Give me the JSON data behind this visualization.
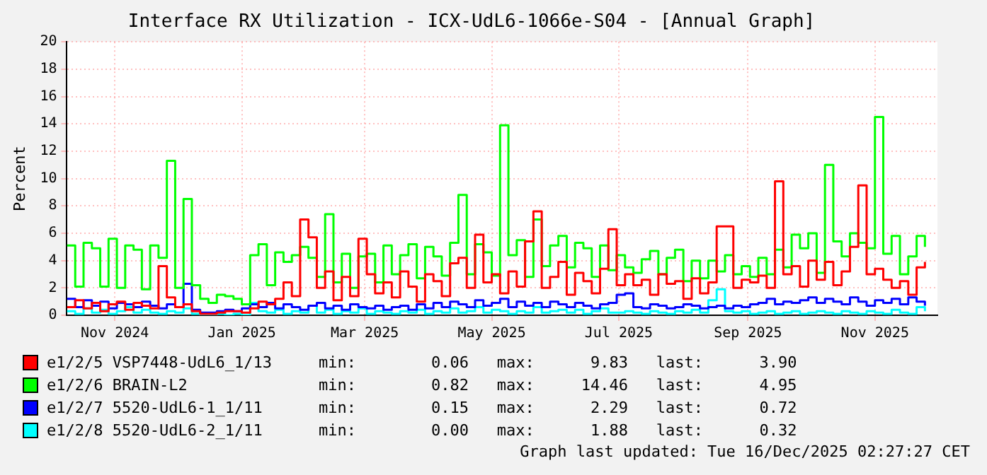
{
  "chart_data": {
    "type": "step",
    "title": "Interface RX Utilization - ICX-UdL6-1066e-S04 - [Annual Graph]",
    "ylabel": "Percent",
    "x": [
      "2024-10-23",
      "2024-10-27",
      "2024-10-31",
      "2024-11-04",
      "2024-11-08",
      "2024-11-12",
      "2024-11-16",
      "2024-11-20",
      "2024-11-24",
      "2024-11-28",
      "2024-12-02",
      "2024-12-06",
      "2024-12-10",
      "2024-12-14",
      "2024-12-18",
      "2024-12-22",
      "2024-12-26",
      "2024-12-30",
      "2025-01-03",
      "2025-01-07",
      "2025-01-11",
      "2025-01-15",
      "2025-01-19",
      "2025-01-23",
      "2025-01-27",
      "2025-01-31",
      "2025-02-04",
      "2025-02-08",
      "2025-02-12",
      "2025-02-16",
      "2025-02-20",
      "2025-02-24",
      "2025-02-28",
      "2025-03-04",
      "2025-03-08",
      "2025-03-12",
      "2025-03-16",
      "2025-03-20",
      "2025-03-24",
      "2025-03-28",
      "2025-04-01",
      "2025-04-05",
      "2025-04-09",
      "2025-04-13",
      "2025-04-17",
      "2025-04-21",
      "2025-04-25",
      "2025-04-29",
      "2025-05-03",
      "2025-05-07",
      "2025-05-11",
      "2025-05-15",
      "2025-05-19",
      "2025-05-23",
      "2025-05-27",
      "2025-05-31",
      "2025-06-04",
      "2025-06-08",
      "2025-06-12",
      "2025-06-16",
      "2025-06-20",
      "2025-06-24",
      "2025-06-28",
      "2025-07-02",
      "2025-07-06",
      "2025-07-10",
      "2025-07-14",
      "2025-07-18",
      "2025-07-22",
      "2025-07-26",
      "2025-07-30",
      "2025-08-03",
      "2025-08-07",
      "2025-08-11",
      "2025-08-15",
      "2025-08-19",
      "2025-08-23",
      "2025-08-27",
      "2025-08-31",
      "2025-09-04",
      "2025-09-08",
      "2025-09-12",
      "2025-09-16",
      "2025-09-20",
      "2025-09-24",
      "2025-09-28",
      "2025-10-02",
      "2025-10-06",
      "2025-10-10",
      "2025-10-14",
      "2025-10-18",
      "2025-10-22",
      "2025-10-26",
      "2025-10-30",
      "2025-11-03",
      "2025-11-07",
      "2025-11-11",
      "2025-11-15",
      "2025-11-19",
      "2025-11-23",
      "2025-11-27",
      "2025-12-01",
      "2025-12-05",
      "2025-12-09"
    ],
    "series": [
      {
        "name": "e1/2/5 VSP7448-UdL6_1/13",
        "color": "#ff0000",
        "values": [
          0.6,
          1.1,
          0.5,
          0.9,
          0.3,
          0.8,
          1.0,
          0.4,
          0.9,
          0.7,
          0.5,
          3.6,
          1.3,
          0.6,
          0.8,
          0.3,
          0.1,
          0.1,
          0.2,
          0.3,
          0.3,
          0.2,
          0.5,
          1.0,
          0.8,
          1.2,
          2.4,
          1.4,
          7.0,
          5.7,
          2.0,
          3.2,
          1.1,
          2.8,
          1.4,
          5.6,
          3.0,
          1.6,
          2.4,
          1.3,
          3.2,
          2.1,
          1.0,
          3.0,
          2.5,
          1.4,
          3.8,
          4.2,
          2.0,
          5.9,
          2.4,
          3.0,
          1.6,
          3.2,
          2.1,
          5.4,
          7.6,
          2.0,
          2.8,
          3.9,
          1.5,
          3.1,
          2.5,
          1.6,
          3.4,
          6.3,
          2.2,
          3.0,
          2.2,
          2.6,
          1.5,
          3.0,
          2.3,
          2.5,
          1.2,
          2.7,
          1.6,
          2.4,
          6.5,
          6.5,
          2.0,
          2.6,
          2.4,
          2.9,
          2.0,
          9.8,
          3.0,
          3.6,
          2.1,
          4.0,
          2.6,
          3.9,
          2.2,
          3.2,
          5.0,
          9.5,
          3.0,
          3.4,
          2.6,
          2.0,
          2.5,
          1.5,
          3.5,
          3.9
        ]
      },
      {
        "name": "e1/2/6 BRAIN-L2",
        "color": "#00ff00",
        "values": [
          5.1,
          2.1,
          5.3,
          4.9,
          2.1,
          5.6,
          2.0,
          5.1,
          4.8,
          1.9,
          5.1,
          4.2,
          11.3,
          2.0,
          8.5,
          2.2,
          1.2,
          0.9,
          1.5,
          1.4,
          1.2,
          0.8,
          4.4,
          5.2,
          2.2,
          4.6,
          3.9,
          4.4,
          5.0,
          4.2,
          2.8,
          7.4,
          2.4,
          4.5,
          2.0,
          4.3,
          4.5,
          2.4,
          5.1,
          3.0,
          4.4,
          5.2,
          2.7,
          5.0,
          4.3,
          2.9,
          5.3,
          8.8,
          3.0,
          5.2,
          4.6,
          2.9,
          13.9,
          4.4,
          5.5,
          2.8,
          7.0,
          3.6,
          5.1,
          5.8,
          3.5,
          5.3,
          4.9,
          2.8,
          5.1,
          3.3,
          4.4,
          3.5,
          3.1,
          4.1,
          4.7,
          3.0,
          4.2,
          4.8,
          2.5,
          4.0,
          2.7,
          4.0,
          3.2,
          4.4,
          3.0,
          3.6,
          2.8,
          4.2,
          3.0,
          4.8,
          3.5,
          5.9,
          4.9,
          6.0,
          3.1,
          11.0,
          5.4,
          4.3,
          6.0,
          5.3,
          4.9,
          14.5,
          4.5,
          5.8,
          3.0,
          4.3,
          5.8,
          5.0
        ]
      },
      {
        "name": "e1/2/7 5520-UdL6-1_1/11",
        "color": "#0000ff",
        "values": [
          1.2,
          0.6,
          1.1,
          0.7,
          1.0,
          0.5,
          0.9,
          0.8,
          0.6,
          1.0,
          0.7,
          0.5,
          0.8,
          0.6,
          2.3,
          0.4,
          0.2,
          0.2,
          0.3,
          0.4,
          0.3,
          0.5,
          0.8,
          0.6,
          0.9,
          0.5,
          0.8,
          0.6,
          0.4,
          0.7,
          0.9,
          0.5,
          0.7,
          0.4,
          0.8,
          0.6,
          0.5,
          0.7,
          0.4,
          0.6,
          0.7,
          0.4,
          0.8,
          0.5,
          0.9,
          0.6,
          1.0,
          0.8,
          0.6,
          1.1,
          0.7,
          0.9,
          1.2,
          0.6,
          1.0,
          0.7,
          0.9,
          0.6,
          1.0,
          0.8,
          0.6,
          0.9,
          0.7,
          0.5,
          0.8,
          0.9,
          1.5,
          1.6,
          0.6,
          0.5,
          0.8,
          0.7,
          0.5,
          0.6,
          0.8,
          0.7,
          0.5,
          0.6,
          0.7,
          0.5,
          0.7,
          0.6,
          0.8,
          0.9,
          1.2,
          0.8,
          1.0,
          0.9,
          1.1,
          1.3,
          0.9,
          1.2,
          1.0,
          0.8,
          1.3,
          1.0,
          0.7,
          1.1,
          0.9,
          1.2,
          0.8,
          1.3,
          1.0,
          0.7
        ]
      },
      {
        "name": "e1/2/8 5520-UdL6-2_1/11",
        "color": "#00ffff",
        "values": [
          0.3,
          0.1,
          0.5,
          0.2,
          0.4,
          0.1,
          0.3,
          0.6,
          0.2,
          0.4,
          0.2,
          0.1,
          0.3,
          0.2,
          0.5,
          0.1,
          0.0,
          0.0,
          0.1,
          0.0,
          0.1,
          0.0,
          0.9,
          0.3,
          0.2,
          0.4,
          0.1,
          0.3,
          0.2,
          0.7,
          0.2,
          0.4,
          0.1,
          0.3,
          0.2,
          0.5,
          0.1,
          0.3,
          0.2,
          0.1,
          0.3,
          0.2,
          0.4,
          0.1,
          0.3,
          0.2,
          0.5,
          0.2,
          0.3,
          0.6,
          0.2,
          0.4,
          0.3,
          0.1,
          0.3,
          0.2,
          0.6,
          0.2,
          0.3,
          0.4,
          0.2,
          0.4,
          0.1,
          0.3,
          0.5,
          0.2,
          0.2,
          0.3,
          0.2,
          0.1,
          0.3,
          0.2,
          0.1,
          0.3,
          0.2,
          0.4,
          0.2,
          1.1,
          1.9,
          0.3,
          0.2,
          0.3,
          0.1,
          0.2,
          0.3,
          0.1,
          0.2,
          0.3,
          0.1,
          0.2,
          0.3,
          0.2,
          0.1,
          0.3,
          0.2,
          0.1,
          0.3,
          0.2,
          0.1,
          0.4,
          0.2,
          0.1,
          0.6,
          0.3
        ]
      }
    ],
    "xlim": [
      "2024-10-23",
      "2025-12-15"
    ],
    "xticks": [
      {
        "value": "2024-11-15",
        "label": "Nov 2024"
      },
      {
        "value": "2025-01-15",
        "label": "Jan 2025"
      },
      {
        "value": "2025-03-15",
        "label": "Mar 2025"
      },
      {
        "value": "2025-05-15",
        "label": "May 2025"
      },
      {
        "value": "2025-07-15",
        "label": "Jul 2025"
      },
      {
        "value": "2025-09-15",
        "label": "Sep 2025"
      },
      {
        "value": "2025-11-15",
        "label": "Nov 2025"
      }
    ],
    "ylim": [
      0,
      20
    ],
    "yticks": [
      0,
      2,
      4,
      6,
      8,
      10,
      12,
      14,
      16,
      18,
      20
    ],
    "grid": true,
    "legend": "bottom",
    "annotations": [
      "min:        0.06   max:      9.83   last:      3.90",
      "min:        0.82   max:     14.46   last:      4.95",
      "min:        0.15   max:      2.29   last:      0.72",
      "min:        0.00   max:      1.88   last:      0.32",
      "Graph last updated: Tue 16/Dec/2025 02:27:27 CET"
    ]
  }
}
